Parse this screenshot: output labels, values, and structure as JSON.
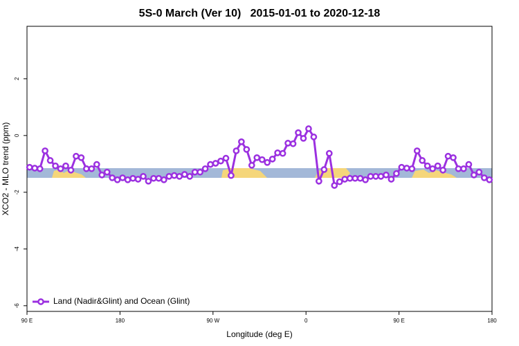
{
  "chart_data": {
    "type": "line",
    "title": "5S-0 March (Ver 10)   2015-01-01 to 2020-12-18",
    "x_label": "Longitude (deg E)",
    "y_label": "XCO2 - MLO trend (ppm)",
    "x": [
      92.5,
      97.5,
      102.5,
      107.5,
      112.5,
      117.5,
      122.5,
      127.5,
      132.5,
      137.5,
      142.5,
      147.5,
      152.5,
      157.5,
      162.5,
      167.5,
      172.5,
      177.5,
      182.5,
      187.5,
      192.5,
      197.5,
      202.5,
      207.5,
      212.5,
      217.5,
      222.5,
      227.5,
      232.5,
      237.5,
      242.5,
      247.5,
      252.5,
      257.5,
      262.5,
      267.5,
      272.5,
      277.5,
      282.5,
      287.5,
      292.5,
      297.5,
      302.5,
      307.5,
      312.5,
      317.5,
      322.5,
      327.5,
      332.5,
      337.5,
      342.5,
      347.5,
      352.5,
      357.5,
      362.5,
      367.5,
      372.5,
      377.5,
      382.5,
      387.5,
      392.5,
      397.5,
      402.5,
      407.5,
      412.5,
      417.5,
      422.5,
      427.5,
      432.5,
      437.5,
      442.5,
      447.5,
      452.5,
      457.5,
      462.5,
      467.5,
      472.5,
      477.5,
      482.5,
      487.5,
      492.5,
      497.5,
      502.5,
      507.5,
      512.5,
      517.5,
      522.5,
      527.5,
      532.5,
      537.5
    ],
    "series": [
      {
        "name": "Land (Nadir&Glint) and Ocean (Glint)",
        "color": "#9b30e0",
        "values": [
          -1.12,
          -1.15,
          -1.17,
          -0.54,
          -0.88,
          -1.07,
          -1.17,
          -1.07,
          -1.22,
          -0.73,
          -0.78,
          -1.17,
          -1.17,
          -1.02,
          -1.39,
          -1.29,
          -1.49,
          -1.56,
          -1.49,
          -1.56,
          -1.51,
          -1.54,
          -1.44,
          -1.61,
          -1.51,
          -1.51,
          -1.56,
          -1.44,
          -1.41,
          -1.44,
          -1.37,
          -1.44,
          -1.29,
          -1.29,
          -1.17,
          -1.02,
          -0.98,
          -0.9,
          -0.8,
          -1.41,
          -0.54,
          -0.22,
          -0.49,
          -1.05,
          -0.78,
          -0.85,
          -0.95,
          -0.83,
          -0.61,
          -0.63,
          -0.27,
          -0.29,
          0.1,
          -0.1,
          0.24,
          -0.05,
          -1.61,
          -1.2,
          -0.63,
          -1.76,
          -1.63,
          -1.54,
          -1.51,
          -1.51,
          -1.51,
          -1.56,
          -1.44,
          -1.44,
          -1.44,
          -1.39,
          -1.54,
          -1.34,
          -1.12,
          -1.15,
          -1.17,
          -0.54,
          -0.88,
          -1.07,
          -1.17,
          -1.07,
          -1.22,
          -0.73,
          -0.78,
          -1.17,
          -1.17,
          -1.02,
          -1.39,
          -1.29,
          -1.49,
          -1.56
        ]
      }
    ],
    "xlim": [
      90,
      540
    ],
    "xticks": [
      {
        "value": 90,
        "label": "90 E"
      },
      180,
      {
        "value": 270,
        "label": "90 W"
      },
      {
        "value": 360,
        "label": "0"
      },
      {
        "value": 450,
        "label": "90 E"
      },
      {
        "value": 540,
        "label": "180"
      }
    ],
    "ylim": [
      -6.2,
      3.85
    ],
    "yticks": [
      -6,
      -4,
      -2,
      0,
      2
    ],
    "legend": "bottom-left"
  }
}
